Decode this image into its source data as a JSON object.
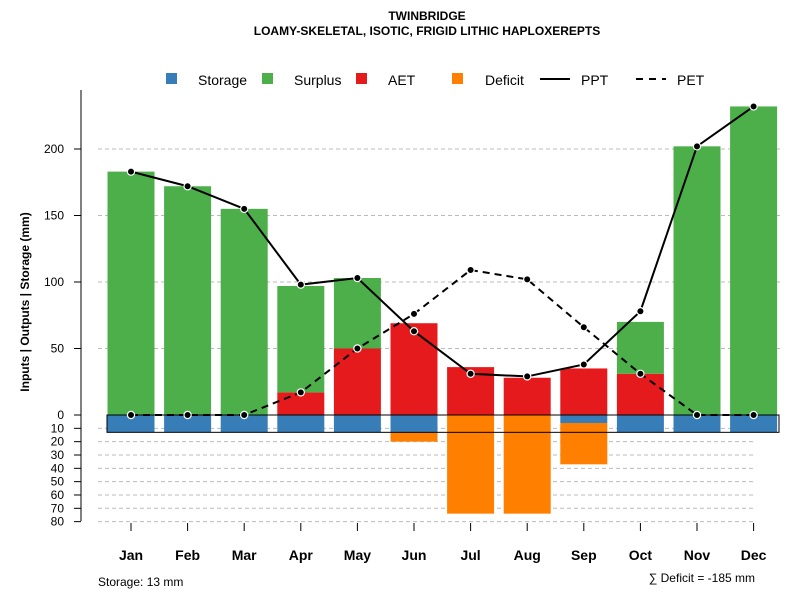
{
  "chart_data": {
    "type": "bar",
    "title": "TWINBRIDGE",
    "subtitle": "LOAMY-SKELETAL, ISOTIC, FRIGID LITHIC HAPLOXEREPTS",
    "ylabel": "Inputs | Outputs | Storage    (mm)",
    "categories": [
      "Jan",
      "Feb",
      "Mar",
      "Apr",
      "May",
      "Jun",
      "Jul",
      "Aug",
      "Sep",
      "Oct",
      "Nov",
      "Dec"
    ],
    "ylim_top": [
      0,
      240
    ],
    "ylim_bottom": [
      0,
      80
    ],
    "yticks_top": [
      0,
      50,
      100,
      150,
      200
    ],
    "yticks_bottom": [
      10,
      20,
      30,
      40,
      50,
      60,
      70,
      80
    ],
    "grid": true,
    "legend_position": "top",
    "series": [
      {
        "name": "Storage",
        "color": "#377eb8",
        "values": [
          13,
          13,
          13,
          13,
          13,
          13,
          0,
          0,
          6,
          13,
          13,
          13
        ]
      },
      {
        "name": "Surplus",
        "color": "#4daf4a",
        "values": [
          183,
          172,
          155,
          80,
          53,
          0,
          0,
          0,
          0,
          39,
          202,
          232
        ]
      },
      {
        "name": "AET",
        "color": "#e41a1c",
        "values": [
          0,
          0,
          0,
          17,
          50,
          69,
          36,
          28,
          35,
          31,
          0,
          0
        ]
      },
      {
        "name": "Deficit",
        "color": "#ff7f00",
        "values": [
          0,
          0,
          0,
          0,
          0,
          7,
          74,
          74,
          31,
          0,
          0,
          0
        ]
      },
      {
        "name": "PPT",
        "color": "#000000",
        "style": "solid",
        "values": [
          183,
          172,
          155,
          98,
          103,
          63,
          31,
          29,
          38,
          78,
          202,
          232
        ]
      },
      {
        "name": "PET",
        "color": "#000000",
        "style": "dashed",
        "values": [
          0,
          0,
          0,
          17,
          50,
          76,
          109,
          102,
          66,
          31,
          0,
          0
        ]
      }
    ],
    "storage_capacity": 13,
    "storage_note": "Storage: 13 mm",
    "deficit_note": "∑ Deficit = -185 mm"
  }
}
